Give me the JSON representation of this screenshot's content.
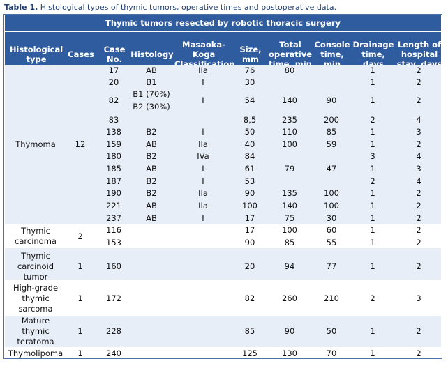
{
  "caption": {
    "label": "Table 1.",
    "text": "Histological types of thymic tumors, operative times and postoperative data."
  },
  "table": {
    "title": "Thymic tumors resected by robotic thoracic surgery",
    "headers": {
      "type": [
        "Histological",
        "type"
      ],
      "cases": [
        "Cases"
      ],
      "caseno": [
        "Case",
        "No."
      ],
      "histology": [
        "Histology"
      ],
      "masaoka": [
        "Masaoka-",
        "Koga",
        "Classification"
      ],
      "size": [
        "Size,",
        "mm"
      ],
      "total": [
        "Total",
        "operative",
        "time, min"
      ],
      "console": [
        "Console",
        "time,",
        "min"
      ],
      "drainage": [
        "Drainage",
        "time,",
        "days"
      ],
      "stay": [
        "Length of",
        "hospital",
        "stay, days"
      ]
    },
    "groups": [
      {
        "type": [
          "Thymoma"
        ],
        "cases": "12"
      },
      {
        "type": [
          "Thymic",
          "carcinoma"
        ],
        "cases": "2"
      },
      {
        "type": [
          "Thymic",
          "carcinoid",
          "tumor"
        ],
        "cases": "1"
      },
      {
        "type": [
          "High-grade",
          "thymic",
          "sarcoma"
        ],
        "cases": "1"
      },
      {
        "type": [
          "Mature",
          "thymic",
          "teratoma"
        ],
        "cases": "1"
      },
      {
        "type": [
          "Thymolipoma"
        ],
        "cases": "1"
      }
    ],
    "rows": [
      {
        "case": "17",
        "histology": [
          "AB"
        ],
        "masaoka": "IIa",
        "size": "76",
        "total": "80",
        "console": "",
        "drainage": "1",
        "stay": "2"
      },
      {
        "case": "20",
        "histology": [
          "B1"
        ],
        "masaoka": "I",
        "size": "30",
        "total": "",
        "console": "",
        "drainage": "1",
        "stay": "2"
      },
      {
        "case": "82",
        "histology": [
          "B1 (70%)",
          "B2 (30%)"
        ],
        "masaoka": "I",
        "size": "54",
        "total": "140",
        "console": "90",
        "drainage": "1",
        "stay": "2"
      },
      {
        "case": "83",
        "histology": [
          ""
        ],
        "masaoka": "",
        "size": "8,5",
        "total": "235",
        "console": "200",
        "drainage": "2",
        "stay": "4"
      },
      {
        "case": "138",
        "histology": [
          "B2"
        ],
        "masaoka": "I",
        "size": "50",
        "total": "110",
        "console": "85",
        "drainage": "1",
        "stay": "3"
      },
      {
        "case": "159",
        "histology": [
          "AB"
        ],
        "masaoka": "IIa",
        "size": "40",
        "total": "100",
        "console": "59",
        "drainage": "1",
        "stay": "2"
      },
      {
        "case": "180",
        "histology": [
          "B2"
        ],
        "masaoka": "IVa",
        "size": "84",
        "total": "",
        "console": "",
        "drainage": "3",
        "stay": "4"
      },
      {
        "case": "185",
        "histology": [
          "AB"
        ],
        "masaoka": "I",
        "size": "61",
        "total": "79",
        "console": "47",
        "drainage": "1",
        "stay": "3"
      },
      {
        "case": "187",
        "histology": [
          "B2"
        ],
        "masaoka": "I",
        "size": "53",
        "total": "",
        "console": "",
        "drainage": "2",
        "stay": "4"
      },
      {
        "case": "190",
        "histology": [
          "B2"
        ],
        "masaoka": "IIa",
        "size": "90",
        "total": "135",
        "console": "100",
        "drainage": "1",
        "stay": "2"
      },
      {
        "case": "221",
        "histology": [
          "AB"
        ],
        "masaoka": "IIa",
        "size": "100",
        "total": "140",
        "console": "100",
        "drainage": "1",
        "stay": "2"
      },
      {
        "case": "237",
        "histology": [
          "AB"
        ],
        "masaoka": "I",
        "size": "17",
        "total": "75",
        "console": "30",
        "drainage": "1",
        "stay": "2"
      },
      {
        "case": "116",
        "histology": [
          ""
        ],
        "masaoka": "",
        "size": "17",
        "total": "100",
        "console": "60",
        "drainage": "1",
        "stay": "2"
      },
      {
        "case": "153",
        "histology": [
          ""
        ],
        "masaoka": "",
        "size": "90",
        "total": "85",
        "console": "55",
        "drainage": "1",
        "stay": "2"
      },
      {
        "case": "160",
        "histology": [
          ""
        ],
        "masaoka": "",
        "size": "20",
        "total": "94",
        "console": "77",
        "drainage": "1",
        "stay": "2"
      },
      {
        "case": "172",
        "histology": [
          ""
        ],
        "masaoka": "",
        "size": "82",
        "total": "260",
        "console": "210",
        "drainage": "2",
        "stay": "3"
      },
      {
        "case": "228",
        "histology": [
          ""
        ],
        "masaoka": "",
        "size": "85",
        "total": "90",
        "console": "50",
        "drainage": "1",
        "stay": "2"
      },
      {
        "case": "240",
        "histology": [
          ""
        ],
        "masaoka": "",
        "size": "125",
        "total": "130",
        "console": "70",
        "drainage": "1",
        "stay": "2"
      }
    ]
  }
}
